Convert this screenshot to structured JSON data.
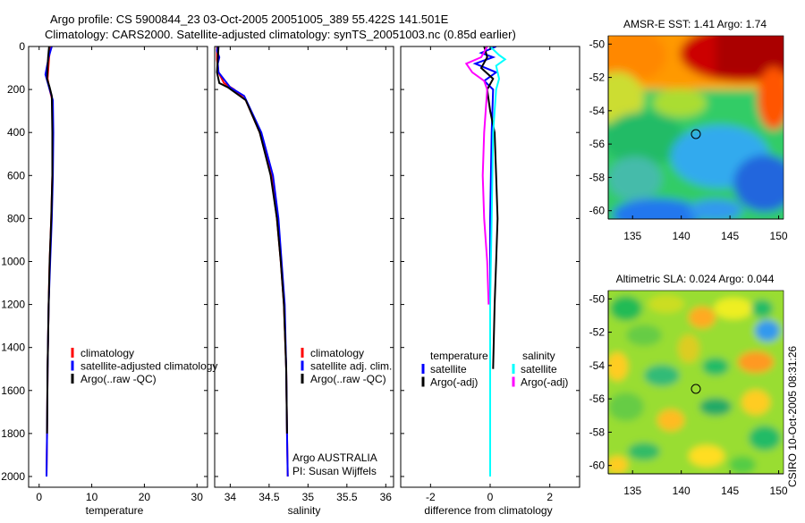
{
  "title": {
    "line1": "Argo profile: CS 5900844_23 03-Oct-2005 20051005_389 55.422S 141.501E",
    "line2": "Climatology: CARS2000. Satellite-adjusted climatology: synTS_20051003.nc (0.85d earlier)"
  },
  "colors": {
    "climatology": "#ff0000",
    "satellite": "#0000ff",
    "argo": "#000000",
    "sal_satellite": "#00ffff",
    "sal_argo": "#ff00ff"
  },
  "chart_data": [
    {
      "type": "line",
      "name": "temperature-profile",
      "xlabel": "temperature",
      "xlim": [
        -2,
        32
      ],
      "ylim": [
        2050,
        0
      ],
      "xticks": [
        "0",
        "10",
        "20",
        "30"
      ],
      "yticks": [
        "0",
        "200",
        "400",
        "600",
        "800",
        "1000",
        "1200",
        "1400",
        "1600",
        "1800",
        "2000"
      ],
      "series": [
        {
          "name": "climatology",
          "color": "#ff0000",
          "x": [
            2.2,
            1.9,
            1.6,
            2.0,
            2.5,
            2.6,
            2.5,
            2.3,
            2.0,
            1.8,
            1.6,
            1.5,
            1.4
          ],
          "y": [
            0,
            50,
            150,
            200,
            250,
            400,
            600,
            800,
            1000,
            1200,
            1500,
            1800,
            2000
          ]
        },
        {
          "name": "satellite-adjusted climatology",
          "color": "#0000ff",
          "x": [
            2.4,
            1.8,
            1.2,
            2.0,
            2.6,
            2.7,
            2.6,
            2.4,
            2.1,
            1.8,
            1.6,
            1.5,
            1.4
          ],
          "y": [
            0,
            50,
            130,
            200,
            250,
            400,
            600,
            800,
            1000,
            1200,
            1500,
            1800,
            2000
          ]
        },
        {
          "name": "Argo(..raw -QC)",
          "color": "#000000",
          "x": [
            1.9,
            1.7,
            1.5,
            2.0,
            2.4,
            2.5,
            2.5,
            2.3,
            2.0,
            1.8,
            1.6,
            1.5
          ],
          "y": [
            0,
            50,
            150,
            190,
            230,
            400,
            600,
            800,
            1000,
            1200,
            1500,
            1800
          ]
        }
      ],
      "legend": [
        "climatology",
        "satellite-adjusted climatology",
        "Argo(..raw -QC)"
      ]
    },
    {
      "type": "line",
      "name": "salinity-profile",
      "xlabel": "salinity",
      "xlim": [
        33.8,
        36.1
      ],
      "ylim": [
        2050,
        0
      ],
      "xticks": [
        "34",
        "34.5",
        "35",
        "35.5",
        "36"
      ],
      "series": [
        {
          "name": "climatology",
          "color": "#ff0000",
          "x": [
            33.83,
            33.83,
            33.85,
            33.92,
            34.05,
            34.2,
            34.38,
            34.53,
            34.6,
            34.65,
            34.69,
            34.72,
            34.73,
            34.74
          ],
          "y": [
            0,
            60,
            120,
            170,
            200,
            250,
            400,
            600,
            800,
            1000,
            1200,
            1500,
            1800,
            2000
          ]
        },
        {
          "name": "satellite adj. clim.",
          "color": "#0000ff",
          "x": [
            33.84,
            33.83,
            33.86,
            33.84,
            33.85,
            34.0,
            34.18,
            34.4,
            34.55,
            34.62,
            34.66,
            34.7,
            34.72,
            34.73,
            34.74
          ],
          "y": [
            0,
            20,
            50,
            80,
            120,
            190,
            230,
            400,
            600,
            800,
            1000,
            1200,
            1500,
            1800,
            2000
          ]
        },
        {
          "name": "Argo(..raw -QC)",
          "color": "#000000",
          "x": [
            33.85,
            33.84,
            33.83,
            33.86,
            33.97,
            34.2,
            34.38,
            34.52,
            34.6,
            34.65,
            34.69,
            34.72,
            34.73
          ],
          "y": [
            0,
            60,
            120,
            170,
            190,
            250,
            400,
            600,
            800,
            1000,
            1200,
            1500,
            1800
          ]
        }
      ],
      "legend": [
        "climatology",
        "satellite adj. clim.",
        "Argo(..raw -QC)"
      ],
      "annotation": [
        "Argo AUSTRALIA",
        "PI: Susan Wijffels"
      ]
    },
    {
      "type": "line",
      "name": "difference-profile",
      "xlabel": "difference from climatology",
      "xlim": [
        -3,
        3
      ],
      "ylim": [
        2050,
        0
      ],
      "xticks": [
        "-2",
        "0",
        "2"
      ],
      "series": [
        {
          "name": "temperature satellite",
          "color": "#0000ff",
          "x": [
            0.2,
            -0.3,
            0.1,
            -0.5,
            0.2,
            -0.2,
            0.1,
            0.05,
            0.0,
            0.0,
            0.0
          ],
          "y": [
            0,
            30,
            50,
            80,
            120,
            160,
            200,
            400,
            800,
            1200,
            2000
          ]
        },
        {
          "name": "temperature Argo(-adj)",
          "color": "#000000",
          "x": [
            -0.2,
            -0.1,
            -0.3,
            0.1,
            -0.1,
            0.0,
            0.15,
            0.2,
            0.25,
            0.2,
            0.15,
            0.1
          ],
          "y": [
            0,
            50,
            100,
            150,
            200,
            300,
            400,
            600,
            800,
            1000,
            1200,
            1500
          ]
        },
        {
          "name": "salinity satellite",
          "color": "#00ffff",
          "x": [
            0.0,
            0.3,
            0.5,
            0.2,
            0.3,
            0.2,
            0.1,
            0.05,
            0.0,
            0.0,
            0.0
          ],
          "y": [
            0,
            40,
            60,
            90,
            150,
            200,
            400,
            800,
            1200,
            1600,
            2000
          ]
        },
        {
          "name": "salinity Argo(-adj)",
          "color": "#ff00ff",
          "x": [
            -0.1,
            -0.3,
            -0.8,
            -0.6,
            -0.2,
            -0.1,
            -0.2,
            -0.25,
            -0.2,
            -0.1,
            -0.05
          ],
          "y": [
            0,
            50,
            80,
            120,
            160,
            200,
            400,
            600,
            800,
            1000,
            1200
          ]
        }
      ],
      "legend_left": {
        "header": "temperature",
        "items": [
          "satellite",
          "Argo(-adj)"
        ]
      },
      "legend_right": {
        "header": "salinity",
        "items": [
          "satellite",
          "Argo(-adj)"
        ]
      }
    },
    {
      "type": "heatmap",
      "name": "amsre-sst-map",
      "title": "AMSR-E SST: 1.41 Argo: 1.74",
      "xlim": [
        132.5,
        150.5
      ],
      "ylim": [
        -60.5,
        -49.5
      ],
      "xticks": [
        "135",
        "140",
        "145",
        "150"
      ],
      "yticks": [
        "-50",
        "-52",
        "-54",
        "-56",
        "-58",
        "-60"
      ],
      "marker": {
        "lon": 141.5,
        "lat": -55.4
      }
    },
    {
      "type": "heatmap",
      "name": "altimetric-sla-map",
      "title": "Altimetric SLA: 0.024 Argo: 0.044",
      "xlim": [
        132.5,
        150.5
      ],
      "ylim": [
        -60.5,
        -49.5
      ],
      "xticks": [
        "135",
        "140",
        "145",
        "150"
      ],
      "yticks": [
        "-50",
        "-52",
        "-54",
        "-56",
        "-58",
        "-60"
      ],
      "marker": {
        "lon": 141.5,
        "lat": -55.4
      }
    }
  ],
  "stamp": "CSIRO 10-Oct-2005 08:31:26"
}
